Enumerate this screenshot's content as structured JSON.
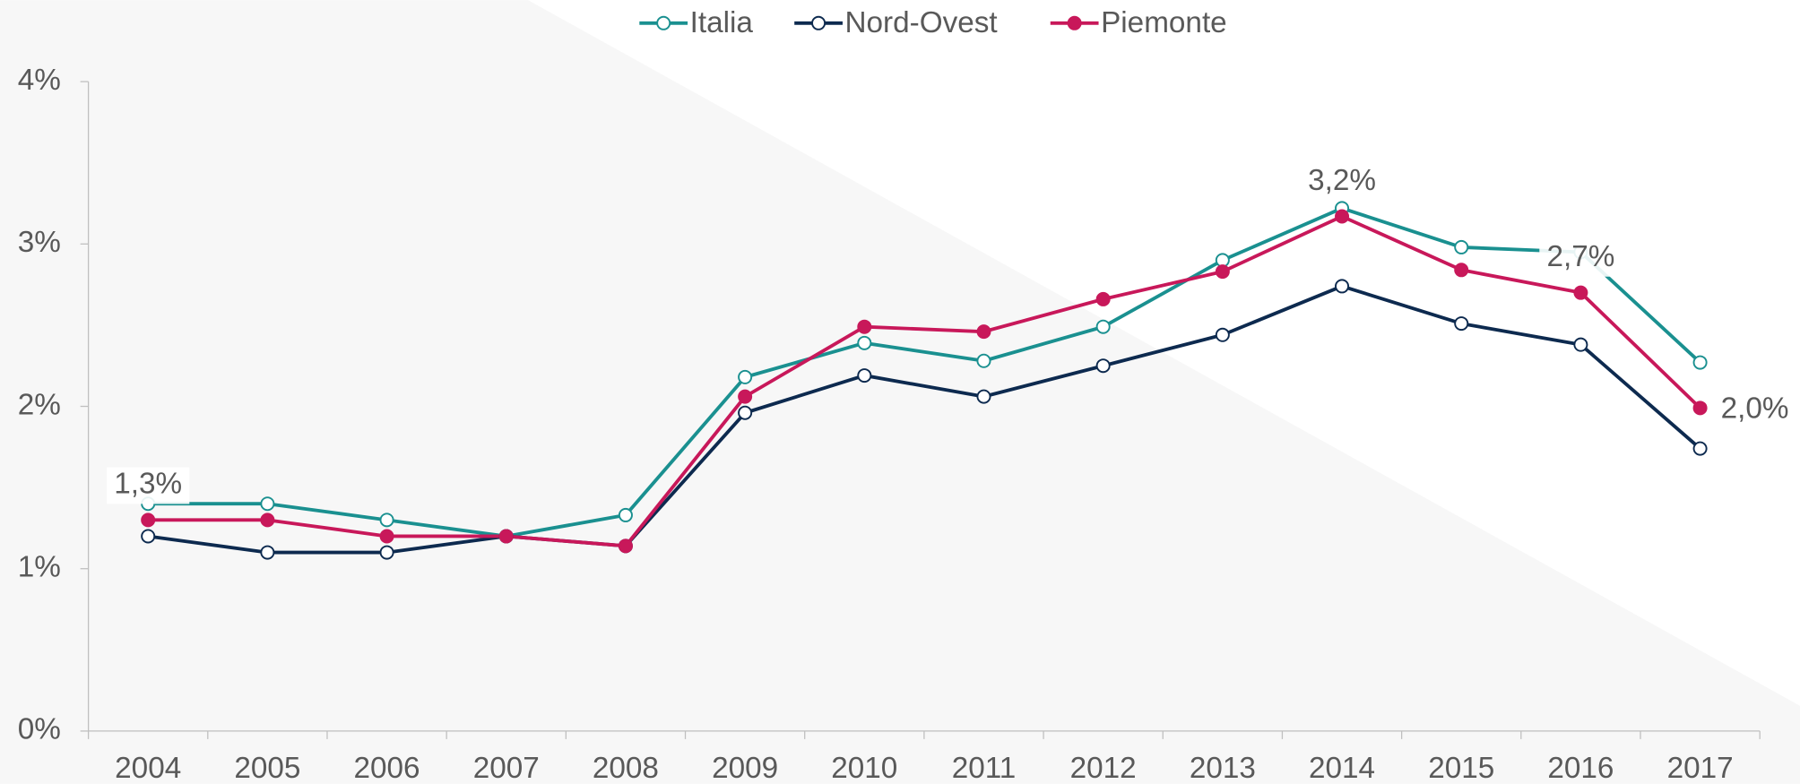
{
  "chart_data": {
    "type": "line",
    "categories": [
      "2004",
      "2005",
      "2006",
      "2007",
      "2008",
      "2009",
      "2010",
      "2011",
      "2012",
      "2013",
      "2014",
      "2015",
      "2016",
      "2017"
    ],
    "series": [
      {
        "name": "Italia",
        "color": "#1a9090",
        "marker": "hollow",
        "values": [
          1.4,
          1.4,
          1.3,
          1.2,
          1.33,
          2.18,
          2.39,
          2.28,
          2.49,
          2.9,
          3.22,
          2.98,
          2.95,
          2.27
        ]
      },
      {
        "name": "Nord-Ovest",
        "color": "#0d2a4f",
        "marker": "hollow",
        "values": [
          1.2,
          1.1,
          1.1,
          1.2,
          1.14,
          1.96,
          2.19,
          2.06,
          2.25,
          2.44,
          2.74,
          2.51,
          2.38,
          1.74
        ]
      },
      {
        "name": "Piemonte",
        "color": "#c8185a",
        "marker": "filled",
        "values": [
          1.3,
          1.3,
          1.2,
          1.2,
          1.14,
          2.06,
          2.49,
          2.46,
          2.66,
          2.83,
          3.17,
          2.84,
          2.7,
          1.99
        ],
        "value_labels": [
          "1,3%",
          null,
          null,
          null,
          null,
          null,
          null,
          null,
          null,
          null,
          "3,2%",
          null,
          "2,7%",
          "2,0%"
        ]
      }
    ],
    "ylim": [
      0,
      4
    ],
    "yticks": [
      {
        "value": 0,
        "label": "0%"
      },
      {
        "value": 1,
        "label": "1%"
      },
      {
        "value": 2,
        "label": "2%"
      },
      {
        "value": 3,
        "label": "3%"
      },
      {
        "value": 4,
        "label": "4%"
      }
    ],
    "legend": "top"
  }
}
